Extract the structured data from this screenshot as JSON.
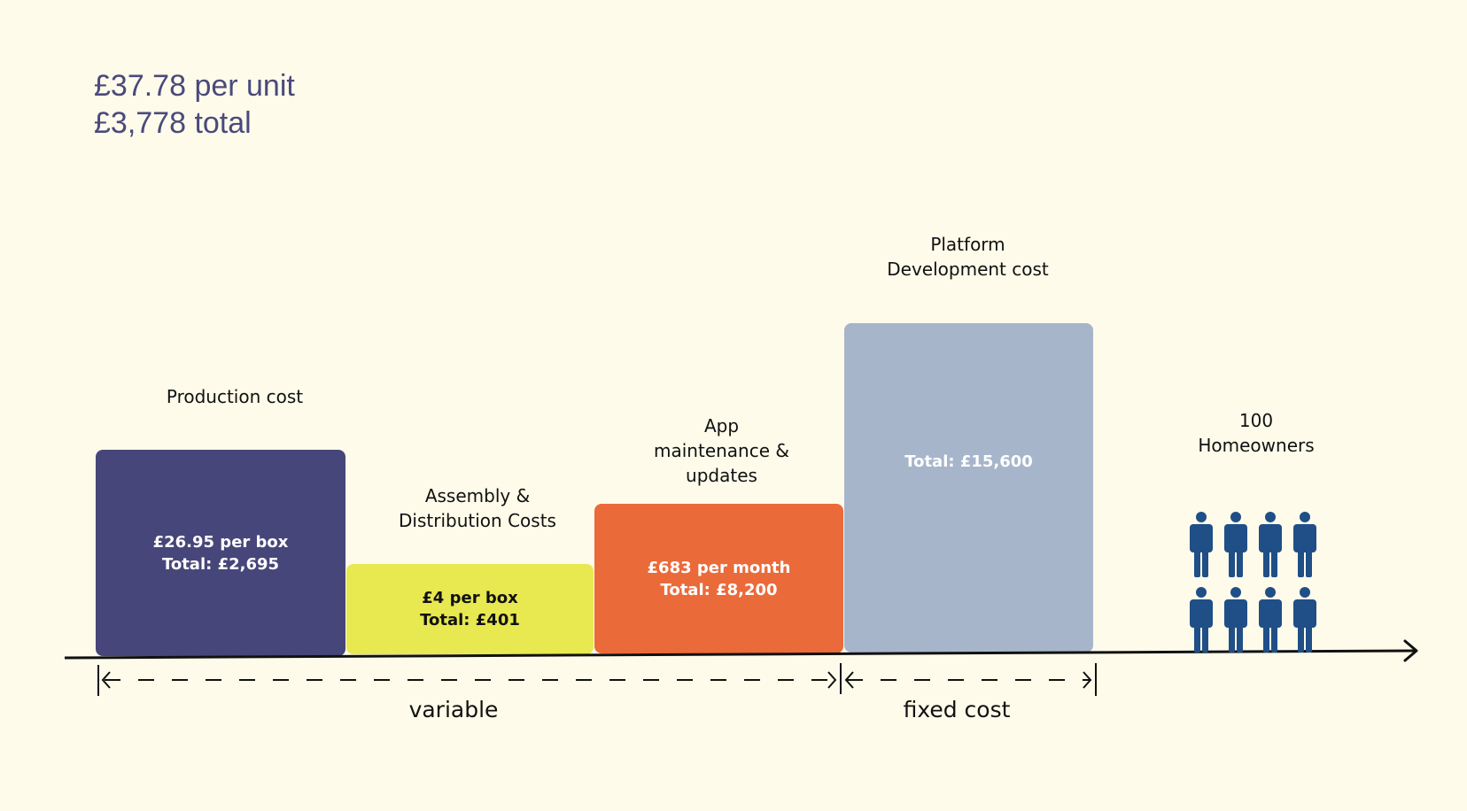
{
  "summary": {
    "per_unit": "£37.78 per unit",
    "total": "£3,778 total"
  },
  "bars": [
    {
      "label": "Production cost",
      "line1": "£26.95 per box",
      "line2": "Total: £2,695",
      "color": "#47467A",
      "text_color": "#FFFFFF"
    },
    {
      "label": "Assembly &\nDistribution Costs",
      "line1": "£4 per box",
      "line2": "Total: £401",
      "color": "#E8E851",
      "text_color": "#111111"
    },
    {
      "label": "App\nmaintenance &\nupdates",
      "line1": "£683 per month",
      "line2": "Total: £8,200",
      "color": "#EB6A3A",
      "text_color": "#FFFFFF"
    },
    {
      "label": "Platform\nDevelopment cost",
      "line1": "",
      "line2": "Total: £15,600",
      "color": "#A7B5CB",
      "text_color": "#FFFFFF"
    }
  ],
  "homeowners": {
    "label": "100\nHomeowners",
    "icon": "person-icon",
    "icon_color": "#1F4F86"
  },
  "ranges": {
    "variable": "variable",
    "fixed": "fixed cost"
  }
}
